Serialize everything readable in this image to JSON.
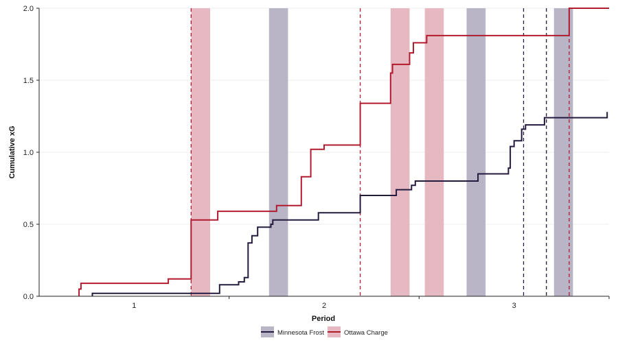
{
  "chart_data": {
    "type": "line",
    "subtype": "step",
    "xlabel": "Period",
    "ylabel": "Cumulative xG",
    "xlim": [
      0.5,
      3.5
    ],
    "ylim": [
      0.0,
      2.0
    ],
    "x_ticks": [
      1,
      2,
      3
    ],
    "x_tick_labels": [
      "1",
      "2",
      "3"
    ],
    "y_ticks": [
      0.0,
      0.5,
      1.0,
      1.5,
      2.0
    ],
    "y_tick_labels": [
      "0.0",
      "0.5",
      "1.0",
      "1.5",
      "2.0"
    ],
    "grid": "horizontal",
    "legend_position": "bottom-center",
    "series": [
      {
        "name": "Minnesota Frost",
        "color": "#241a3d",
        "band_color": "#b9b5c6",
        "points": [
          [
            0.78,
            0.0
          ],
          [
            0.78,
            0.02
          ],
          [
            1.45,
            0.02
          ],
          [
            1.45,
            0.08
          ],
          [
            1.55,
            0.08
          ],
          [
            1.55,
            0.1
          ],
          [
            1.58,
            0.1
          ],
          [
            1.58,
            0.13
          ],
          [
            1.6,
            0.13
          ],
          [
            1.6,
            0.37
          ],
          [
            1.62,
            0.37
          ],
          [
            1.62,
            0.42
          ],
          [
            1.65,
            0.42
          ],
          [
            1.65,
            0.48
          ],
          [
            1.72,
            0.48
          ],
          [
            1.72,
            0.5
          ],
          [
            1.73,
            0.5
          ],
          [
            1.73,
            0.53
          ],
          [
            1.97,
            0.53
          ],
          [
            1.97,
            0.58
          ],
          [
            2.19,
            0.58
          ],
          [
            2.19,
            0.7
          ],
          [
            2.38,
            0.7
          ],
          [
            2.38,
            0.74
          ],
          [
            2.46,
            0.74
          ],
          [
            2.46,
            0.77
          ],
          [
            2.48,
            0.77
          ],
          [
            2.48,
            0.8
          ],
          [
            2.81,
            0.8
          ],
          [
            2.81,
            0.85
          ],
          [
            2.97,
            0.85
          ],
          [
            2.97,
            0.89
          ],
          [
            2.98,
            0.89
          ],
          [
            2.98,
            1.04
          ],
          [
            3.0,
            1.04
          ],
          [
            3.0,
            1.08
          ],
          [
            3.04,
            1.08
          ],
          [
            3.04,
            1.16
          ],
          [
            3.06,
            1.16
          ],
          [
            3.06,
            1.19
          ],
          [
            3.16,
            1.19
          ],
          [
            3.16,
            1.24
          ],
          [
            3.49,
            1.24
          ],
          [
            3.49,
            1.28
          ]
        ]
      },
      {
        "name": "Ottawa Charge",
        "color": "#b21a2e",
        "band_color": "#e6b8c1",
        "points": [
          [
            0.71,
            0.0
          ],
          [
            0.71,
            0.05
          ],
          [
            0.72,
            0.05
          ],
          [
            0.72,
            0.09
          ],
          [
            1.18,
            0.09
          ],
          [
            1.18,
            0.12
          ],
          [
            1.3,
            0.12
          ],
          [
            1.3,
            0.53
          ],
          [
            1.44,
            0.53
          ],
          [
            1.44,
            0.59
          ],
          [
            1.75,
            0.59
          ],
          [
            1.75,
            0.63
          ],
          [
            1.88,
            0.63
          ],
          [
            1.88,
            0.83
          ],
          [
            1.93,
            0.83
          ],
          [
            1.93,
            1.02
          ],
          [
            2.0,
            1.02
          ],
          [
            2.0,
            1.05
          ],
          [
            2.19,
            1.05
          ],
          [
            2.19,
            1.34
          ],
          [
            2.35,
            1.34
          ],
          [
            2.35,
            1.55
          ],
          [
            2.36,
            1.55
          ],
          [
            2.36,
            1.61
          ],
          [
            2.45,
            1.61
          ],
          [
            2.45,
            1.69
          ],
          [
            2.47,
            1.69
          ],
          [
            2.47,
            1.76
          ],
          [
            2.54,
            1.76
          ],
          [
            2.54,
            1.81
          ],
          [
            3.29,
            1.81
          ],
          [
            3.29,
            2.0
          ],
          [
            3.5,
            2.0
          ]
        ]
      }
    ],
    "penalty_bands": [
      {
        "team": "Ottawa Charge",
        "start": 1.3,
        "end": 1.4
      },
      {
        "team": "Minnesota Frost",
        "start": 1.71,
        "end": 1.81
      },
      {
        "team": "Ottawa Charge",
        "start": 2.35,
        "end": 2.45
      },
      {
        "team": "Ottawa Charge",
        "start": 2.53,
        "end": 2.63
      },
      {
        "team": "Minnesota Frost",
        "start": 2.75,
        "end": 2.85
      },
      {
        "team": "Minnesota Frost",
        "start": 3.21,
        "end": 3.31
      }
    ],
    "goal_lines": [
      {
        "team": "Ottawa Charge",
        "x": 1.3
      },
      {
        "team": "Ottawa Charge",
        "x": 2.19
      },
      {
        "team": "Minnesota Frost",
        "x": 3.05
      },
      {
        "team": "Minnesota Frost",
        "x": 3.17
      },
      {
        "team": "Ottawa Charge",
        "x": 3.29
      }
    ]
  }
}
